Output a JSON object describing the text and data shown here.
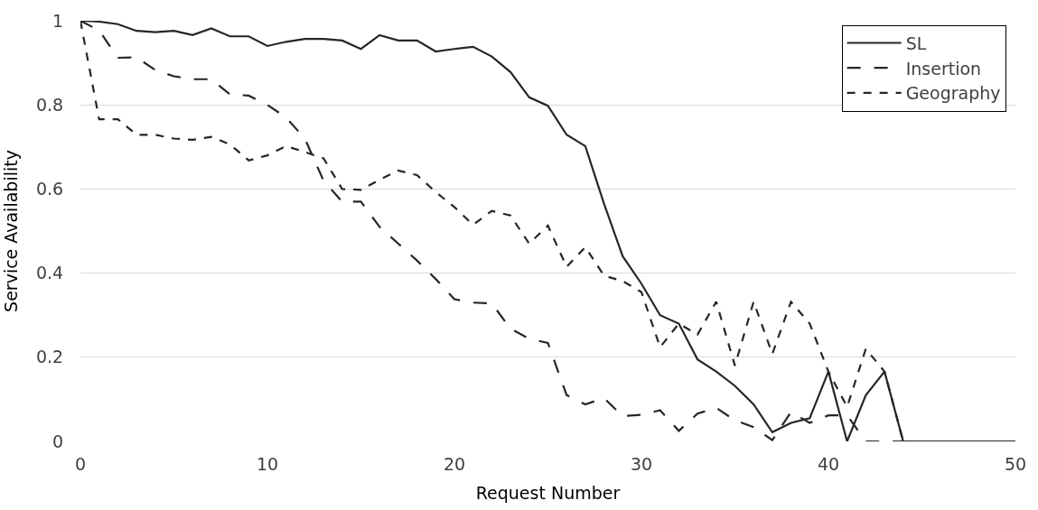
{
  "chart_data": {
    "type": "line",
    "xlabel": "Request Number",
    "ylabel": "Service Availability",
    "x": [
      0,
      1,
      2,
      3,
      4,
      5,
      6,
      7,
      8,
      9,
      10,
      11,
      12,
      13,
      14,
      15,
      16,
      17,
      18,
      19,
      20,
      21,
      22,
      23,
      24,
      25,
      26,
      27,
      28,
      29,
      30,
      31,
      32,
      33,
      34,
      35,
      36,
      37,
      38,
      39,
      40,
      41,
      42,
      43,
      44,
      45,
      46,
      47,
      48,
      49,
      50
    ],
    "series": [
      {
        "name": "SL",
        "color": "#262626",
        "line_style": "solid",
        "values": [
          1,
          0.998,
          0.992,
          0.976,
          0.973,
          0.976,
          0.966,
          0.982,
          0.963,
          0.963,
          0.94,
          0.95,
          0.957,
          0.957,
          0.953,
          0.933,
          0.966,
          0.953,
          0.953,
          0.927,
          0.933,
          0.938,
          0.915,
          0.878,
          0.818,
          0.798,
          0.729,
          0.702,
          0.565,
          0.44,
          0.375,
          0.3,
          0.28,
          0.195,
          0.166,
          0.132,
          0.088,
          0.022,
          0.044,
          0.055,
          0.166,
          0,
          0.11,
          0.166,
          0,
          0,
          0,
          0,
          0,
          0,
          0
        ]
      },
      {
        "name": "Insertion",
        "color": "#262626",
        "line_style": "dashed",
        "values": [
          1,
          0.977,
          0.912,
          0.913,
          0.883,
          0.868,
          0.861,
          0.861,
          0.825,
          0.822,
          0.8,
          0.77,
          0.72,
          0.62,
          0.57,
          0.57,
          0.51,
          0.47,
          0.43,
          0.386,
          0.338,
          0.33,
          0.328,
          0.268,
          0.244,
          0.234,
          0.11,
          0.088,
          0.103,
          0.06,
          0.063,
          0.074,
          0.025,
          0.066,
          0.08,
          0.05,
          0.034,
          0.003,
          0.07,
          0.044,
          0.062,
          0.062,
          0,
          0,
          0,
          0,
          0,
          0,
          0,
          0,
          0
        ]
      },
      {
        "name": "Geography",
        "color": "#262626",
        "line_style": "dotted",
        "values": [
          1,
          0.766,
          0.766,
          0.729,
          0.729,
          0.72,
          0.717,
          0.724,
          0.706,
          0.668,
          0.68,
          0.702,
          0.688,
          0.673,
          0.6,
          0.598,
          0.622,
          0.644,
          0.633,
          0.593,
          0.557,
          0.515,
          0.548,
          0.537,
          0.47,
          0.513,
          0.415,
          0.462,
          0.394,
          0.381,
          0.355,
          0.224,
          0.28,
          0.254,
          0.332,
          0.18,
          0.332,
          0.208,
          0.332,
          0.28,
          0.166,
          0.082,
          0.22,
          0.166,
          0,
          0,
          0,
          0,
          0,
          0,
          0
        ]
      }
    ],
    "xlim": [
      0,
      50
    ],
    "xticks": [
      0,
      10,
      20,
      30,
      40,
      50
    ],
    "ylim": [
      0,
      1
    ],
    "yticks": [
      0,
      0.2,
      0.4,
      0.6,
      0.8,
      1
    ],
    "grid": "y",
    "legend": "top right",
    "marker": "none"
  }
}
